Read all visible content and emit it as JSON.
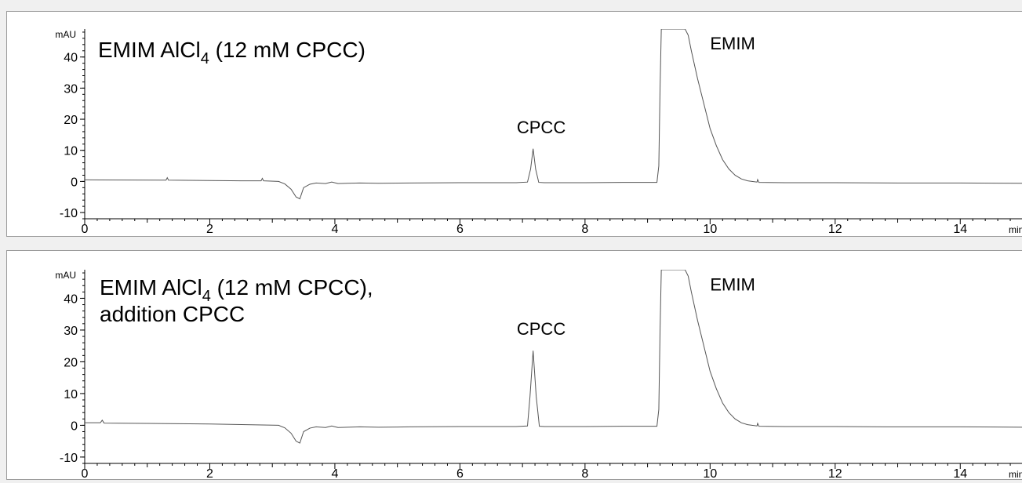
{
  "page": {
    "background": "#f0f0f0"
  },
  "chart_data": [
    {
      "type": "line",
      "title_main": "EMIM AlCl",
      "title_sub": "4",
      "title_tail": " (12 mM CPCC)",
      "title_line2": "",
      "yunit": "mAU",
      "xunit": "min",
      "xlim": [
        0,
        15
      ],
      "ylim": [
        -12,
        49
      ],
      "xticks": [
        0,
        2,
        4,
        6,
        8,
        10,
        12,
        14
      ],
      "yticks": [
        -10,
        0,
        10,
        20,
        30,
        40
      ],
      "peaks": [
        {
          "label": "CPCC",
          "x": 7.17,
          "height": 10.5,
          "label_x": 7.3,
          "label_y": 15.5
        },
        {
          "label": "EMIM",
          "x": 9.22,
          "height": null,
          "label_x": 10.0,
          "label_y": 42.5
        }
      ],
      "series": [
        {
          "color": "#555555",
          "x": [
            0,
            1.3,
            1.32,
            1.34,
            2.5,
            2.82,
            2.84,
            2.86,
            3.1,
            3.2,
            3.3,
            3.38,
            3.44,
            3.5,
            3.6,
            3.7,
            3.85,
            3.95,
            4.05,
            4.2,
            4.4,
            4.7,
            5.2,
            6.0,
            6.9,
            7.08,
            7.13,
            7.17,
            7.21,
            7.26,
            7.35,
            7.5,
            8.0,
            8.6,
            9.15,
            9.18,
            9.2,
            9.22,
            9.25,
            9.6,
            9.65,
            9.7,
            9.8,
            9.9,
            10.0,
            10.1,
            10.2,
            10.3,
            10.4,
            10.5,
            10.6,
            10.75,
            10.76,
            10.78,
            11.2,
            12.0,
            13.0,
            14.0,
            15.0
          ],
          "y": [
            0.5,
            0.4,
            1.2,
            0.4,
            0.2,
            0.2,
            1.0,
            0.2,
            0.0,
            -0.8,
            -2.5,
            -5.0,
            -5.6,
            -2.0,
            -0.9,
            -0.5,
            -0.7,
            -0.2,
            -0.7,
            -0.6,
            -0.5,
            -0.6,
            -0.5,
            -0.4,
            -0.4,
            -0.2,
            4.0,
            10.5,
            4.0,
            -0.3,
            -0.4,
            -0.4,
            -0.4,
            -0.3,
            -0.3,
            5.0,
            30.0,
            49,
            49,
            49,
            47.0,
            42.0,
            33.0,
            25.0,
            17.0,
            11.5,
            7.0,
            4.0,
            2.0,
            0.8,
            0.2,
            -0.2,
            0.6,
            -0.3,
            -0.4,
            -0.4,
            -0.5,
            -0.5,
            -0.6
          ]
        }
      ]
    },
    {
      "type": "line",
      "title_main": "EMIM AlCl",
      "title_sub": "4",
      "title_tail": " (12 mM CPCC),",
      "title_line2": "addition CPCC",
      "yunit": "mAU",
      "xunit": "min",
      "xlim": [
        0,
        15
      ],
      "ylim": [
        -12,
        49
      ],
      "xticks": [
        0,
        2,
        4,
        6,
        8,
        10,
        12,
        14
      ],
      "yticks": [
        -10,
        0,
        10,
        20,
        30,
        40
      ],
      "peaks": [
        {
          "label": "CPCC",
          "x": 7.17,
          "height": 23.5,
          "label_x": 7.3,
          "label_y": 28.5
        },
        {
          "label": "EMIM",
          "x": 9.22,
          "height": null,
          "label_x": 10.0,
          "label_y": 42.5
        }
      ],
      "series": [
        {
          "color": "#555555",
          "x": [
            0,
            0.25,
            0.28,
            0.31,
            1.0,
            2.0,
            3.1,
            3.2,
            3.3,
            3.38,
            3.44,
            3.5,
            3.6,
            3.7,
            3.85,
            3.95,
            4.05,
            4.2,
            4.4,
            4.7,
            5.2,
            6.0,
            6.9,
            7.08,
            7.12,
            7.17,
            7.22,
            7.27,
            7.35,
            7.5,
            8.0,
            8.6,
            9.15,
            9.18,
            9.2,
            9.22,
            9.25,
            9.6,
            9.65,
            9.7,
            9.8,
            9.9,
            10.0,
            10.1,
            10.2,
            10.3,
            10.4,
            10.5,
            10.6,
            10.75,
            10.76,
            10.78,
            11.2,
            12.0,
            12.8,
            13.6,
            14.0,
            15.0
          ],
          "y": [
            0.8,
            0.8,
            1.6,
            0.7,
            0.6,
            0.4,
            0.0,
            -0.8,
            -2.5,
            -5.0,
            -5.6,
            -2.0,
            -0.9,
            -0.5,
            -0.7,
            -0.2,
            -0.7,
            -0.6,
            -0.5,
            -0.6,
            -0.5,
            -0.4,
            -0.4,
            -0.2,
            9.0,
            23.5,
            9.0,
            -0.3,
            -0.4,
            -0.4,
            -0.4,
            -0.3,
            -0.3,
            5.0,
            30.0,
            49,
            49,
            49,
            47.0,
            42.0,
            33.0,
            25.0,
            17.0,
            11.5,
            7.0,
            4.0,
            2.0,
            0.8,
            0.2,
            -0.2,
            0.6,
            -0.3,
            -0.4,
            -0.4,
            -0.5,
            -0.5,
            -0.5,
            -0.6
          ]
        }
      ]
    }
  ]
}
